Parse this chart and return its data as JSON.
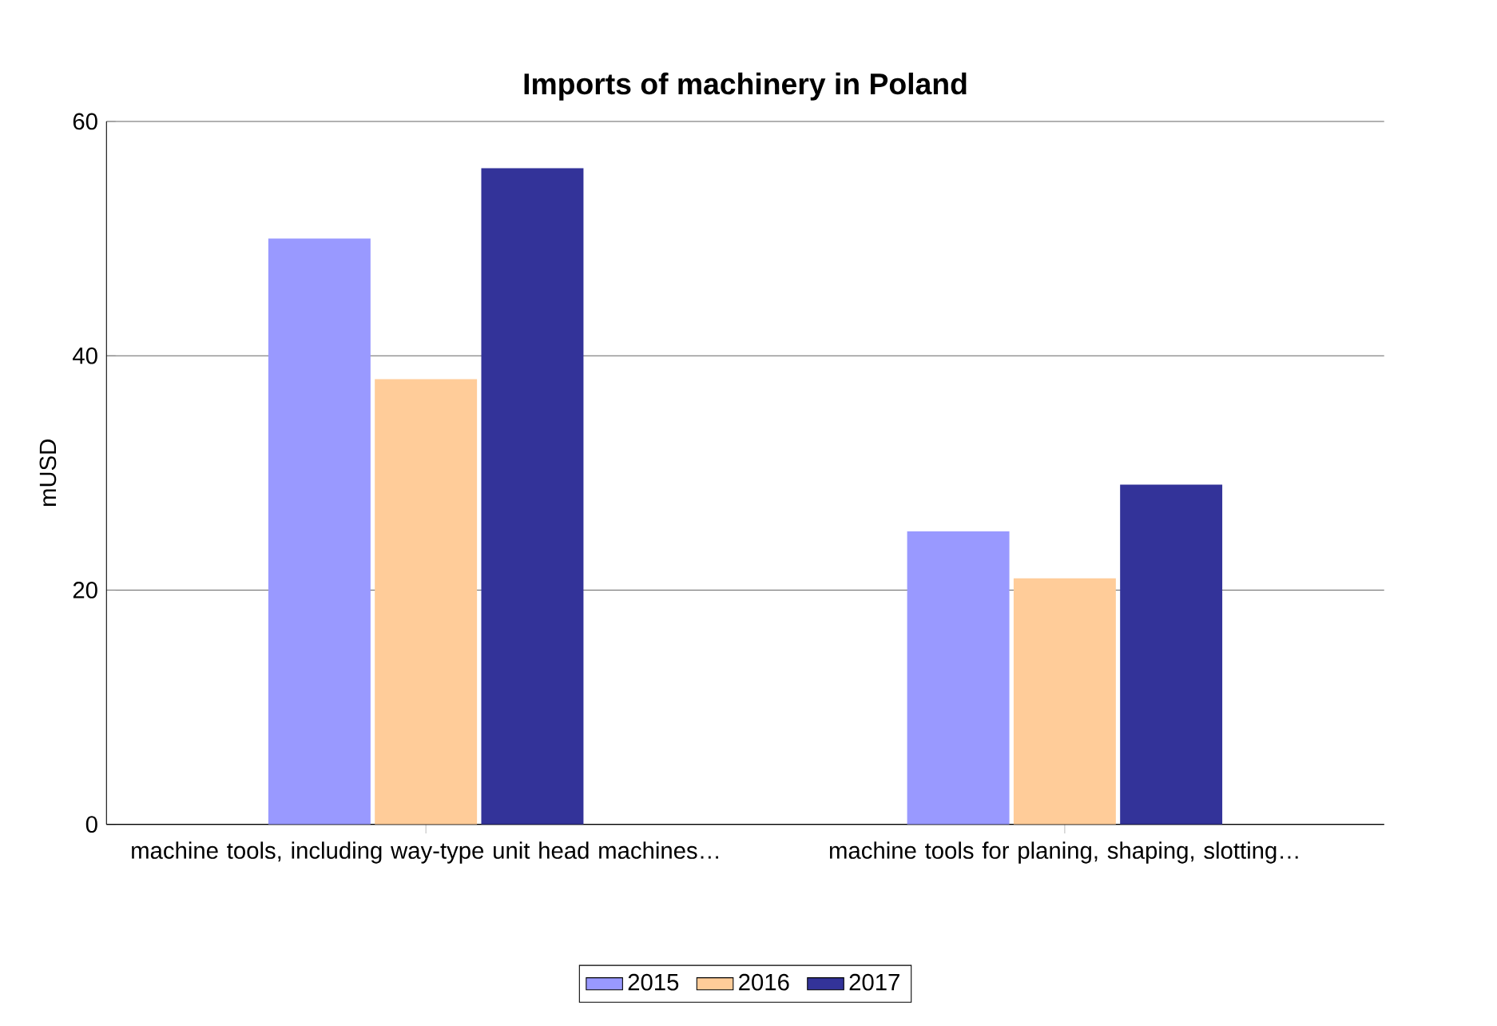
{
  "chart_data": {
    "type": "bar",
    "title": "Imports of machinery in Poland",
    "ylabel": "mUSD",
    "categories": [
      "machine tools, including way-type unit head machines…",
      "machine tools for planing, shaping, slotting…"
    ],
    "series": [
      {
        "name": "2015",
        "color": "#9999ff",
        "values": [
          50,
          25
        ]
      },
      {
        "name": "2016",
        "color": "#ffcc99",
        "values": [
          38,
          21
        ]
      },
      {
        "name": "2017",
        "color": "#333399",
        "values": [
          56,
          29
        ]
      }
    ],
    "ylim": [
      0,
      60
    ],
    "yticks": [
      0,
      20,
      40,
      60
    ],
    "grid": "y",
    "legend": "bottom"
  }
}
